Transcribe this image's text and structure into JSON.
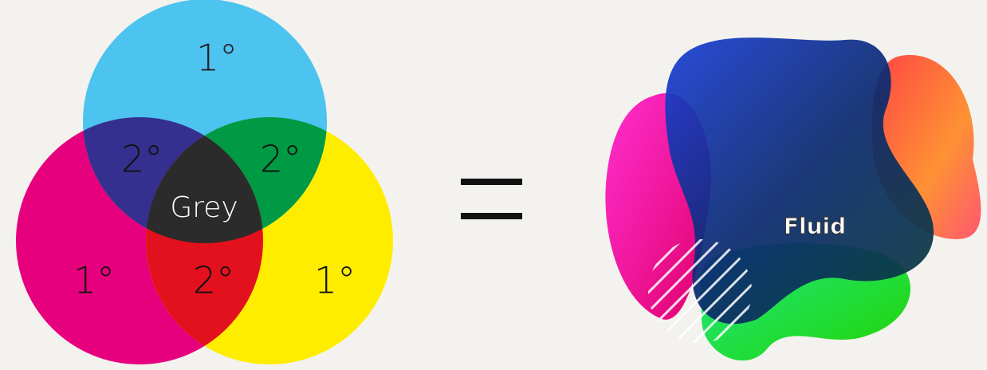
{
  "venn": {
    "regions": [
      {
        "label": "1°"
      },
      {
        "label": "2°"
      },
      {
        "label": "2°"
      },
      {
        "label": "Grey"
      },
      {
        "label": "1°"
      },
      {
        "label": "2°"
      },
      {
        "label": "1°"
      }
    ]
  },
  "fluid": {
    "label": "Fluid"
  }
}
